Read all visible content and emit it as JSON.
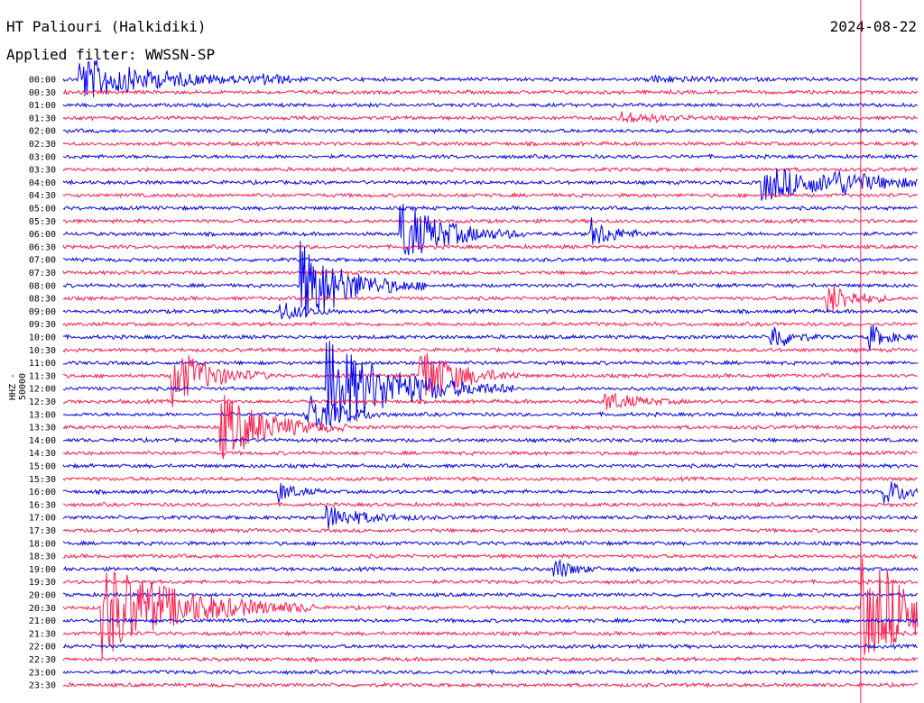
{
  "header": {
    "station": "HT Paliouri (Halkidiki)",
    "date": "2024-08-22",
    "filter": "Applied filter: WWSSN-SP",
    "channel_label": "HHZ - 50000"
  },
  "colors": {
    "trace_a": "#0000ee",
    "trace_b": "#ff1a4b",
    "marker": "#ff1a4b",
    "background": "#ffffff",
    "text": "#000000"
  },
  "chart_data": {
    "type": "line",
    "title": "HT Paliouri (Halkidiki)",
    "subtitle": "Applied filter: WWSSN-SP",
    "ylabel": "HHZ - 50000",
    "date": "2024-08-22",
    "row_labels": [
      "00:00",
      "00:30",
      "01:00",
      "01:30",
      "02:00",
      "02:30",
      "03:00",
      "03:30",
      "04:00",
      "04:30",
      "05:00",
      "05:30",
      "06:00",
      "06:30",
      "07:00",
      "07:30",
      "08:00",
      "08:30",
      "09:00",
      "09:30",
      "10:00",
      "10:30",
      "11:00",
      "11:30",
      "12:00",
      "12:30",
      "13:00",
      "13:30",
      "14:00",
      "14:30",
      "15:00",
      "15:30",
      "16:00",
      "16:30",
      "17:00",
      "17:30",
      "18:00",
      "18:30",
      "19:00",
      "19:30",
      "20:00",
      "20:30",
      "21:00",
      "21:30",
      "22:00",
      "22:30",
      "23:00",
      "23:30"
    ],
    "minutes_per_row": 30,
    "row_colors_alternate": [
      "blue",
      "red"
    ],
    "events": [
      {
        "row": 0,
        "minute": 0.5,
        "amplitude": 1.8,
        "duration": 2.5
      },
      {
        "row": 0,
        "minute": 7.0,
        "amplitude": 0.3,
        "duration": 0.8
      },
      {
        "row": 0,
        "minute": 20.5,
        "amplitude": 0.25,
        "duration": 1.5
      },
      {
        "row": 3,
        "minute": 19.5,
        "amplitude": 0.5,
        "duration": 1.2
      },
      {
        "row": 8,
        "minute": 24.5,
        "amplitude": 1.4,
        "duration": 2.5
      },
      {
        "row": 8,
        "minute": 27.0,
        "amplitude": 0.6,
        "duration": 1.2
      },
      {
        "row": 12,
        "minute": 11.8,
        "amplitude": 2.6,
        "duration": 1.5
      },
      {
        "row": 12,
        "minute": 18.5,
        "amplitude": 1.2,
        "duration": 0.8
      },
      {
        "row": 16,
        "minute": 8.3,
        "amplitude": 3.5,
        "duration": 1.5
      },
      {
        "row": 17,
        "minute": 26.8,
        "amplitude": 1.5,
        "duration": 0.8
      },
      {
        "row": 18,
        "minute": 7.5,
        "amplitude": 0.9,
        "duration": 0.8
      },
      {
        "row": 20,
        "minute": 24.8,
        "amplitude": 1.4,
        "duration": 0.6
      },
      {
        "row": 20,
        "minute": 28.2,
        "amplitude": 1.2,
        "duration": 0.6
      },
      {
        "row": 23,
        "minute": 3.8,
        "amplitude": 2.5,
        "duration": 1.2
      },
      {
        "row": 23,
        "minute": 12.5,
        "amplitude": 2.6,
        "duration": 1.2
      },
      {
        "row": 24,
        "minute": 9.2,
        "amplitude": 4.0,
        "duration": 2.2
      },
      {
        "row": 25,
        "minute": 19.0,
        "amplitude": 0.8,
        "duration": 1.0
      },
      {
        "row": 26,
        "minute": 8.5,
        "amplitude": 2.0,
        "duration": 1.0
      },
      {
        "row": 27,
        "minute": 5.5,
        "amplitude": 2.8,
        "duration": 1.5
      },
      {
        "row": 32,
        "minute": 7.5,
        "amplitude": 0.9,
        "duration": 0.6
      },
      {
        "row": 32,
        "minute": 28.8,
        "amplitude": 1.0,
        "duration": 1.0
      },
      {
        "row": 34,
        "minute": 9.2,
        "amplitude": 1.0,
        "duration": 1.2
      },
      {
        "row": 38,
        "minute": 17.2,
        "amplitude": 1.0,
        "duration": 0.6
      },
      {
        "row": 41,
        "minute": 1.3,
        "amplitude": 4.0,
        "duration": 2.5
      },
      {
        "row": 41,
        "minute": 28.0,
        "amplitude": 4.0,
        "duration": 3.0
      }
    ],
    "marker_minute": 28.0
  }
}
